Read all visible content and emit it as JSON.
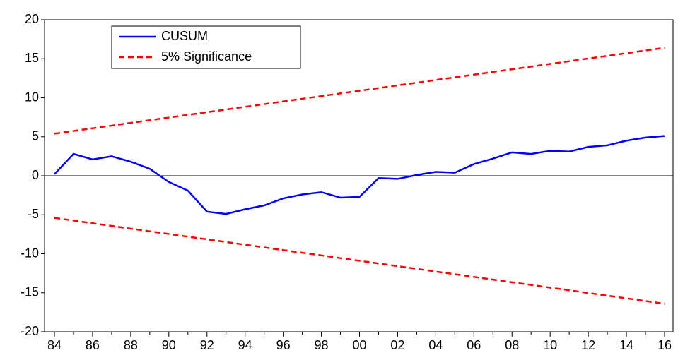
{
  "chart_data": {
    "type": "line",
    "categories": [
      "84",
      null,
      "86",
      null,
      "88",
      null,
      "90",
      null,
      "92",
      null,
      "94",
      null,
      "96",
      null,
      "98",
      null,
      "00",
      null,
      "02",
      null,
      "04",
      null,
      "06",
      null,
      "08",
      null,
      "10",
      null,
      "12",
      null,
      "14",
      null,
      "16"
    ],
    "series": [
      {
        "name": "CUSUM",
        "color": "#0000ff",
        "dash": false,
        "values": [
          0.2,
          2.8,
          2.1,
          2.5,
          1.8,
          0.9,
          -0.8,
          -1.9,
          -4.6,
          -4.9,
          -4.3,
          -3.8,
          -2.9,
          -2.4,
          -2.1,
          -2.8,
          -2.7,
          -0.3,
          -0.4,
          0.1,
          0.5,
          0.4,
          1.5,
          2.2,
          3.0,
          2.8,
          3.2,
          3.1,
          3.7,
          3.9,
          4.5,
          4.9,
          5.1
        ]
      },
      {
        "name": "5% Significance",
        "color": "#ff0000",
        "dash": true,
        "values": [
          5.4,
          5.74,
          6.09,
          6.43,
          6.78,
          7.12,
          7.46,
          7.81,
          8.15,
          8.49,
          8.84,
          9.18,
          9.53,
          9.87,
          10.21,
          10.56,
          10.9,
          11.24,
          11.59,
          11.93,
          12.28,
          12.62,
          12.96,
          13.31,
          13.65,
          13.99,
          14.34,
          14.68,
          15.03,
          15.37,
          15.71,
          16.06,
          16.4
        ],
        "lower_values": [
          -5.4,
          -5.74,
          -6.09,
          -6.43,
          -6.78,
          -7.12,
          -7.46,
          -7.81,
          -8.15,
          -8.49,
          -8.84,
          -9.18,
          -9.53,
          -9.87,
          -10.21,
          -10.56,
          -10.9,
          -11.24,
          -11.59,
          -11.93,
          -12.28,
          -12.62,
          -12.96,
          -13.31,
          -13.65,
          -13.99,
          -14.34,
          -14.68,
          -15.03,
          -15.37,
          -15.71,
          -16.06,
          -16.4
        ]
      }
    ],
    "ylim": [
      -20,
      20
    ],
    "yticks": [
      -20,
      -15,
      -10,
      -5,
      0,
      5,
      10,
      15,
      20
    ],
    "zero_line": true,
    "legend": "top-left"
  }
}
